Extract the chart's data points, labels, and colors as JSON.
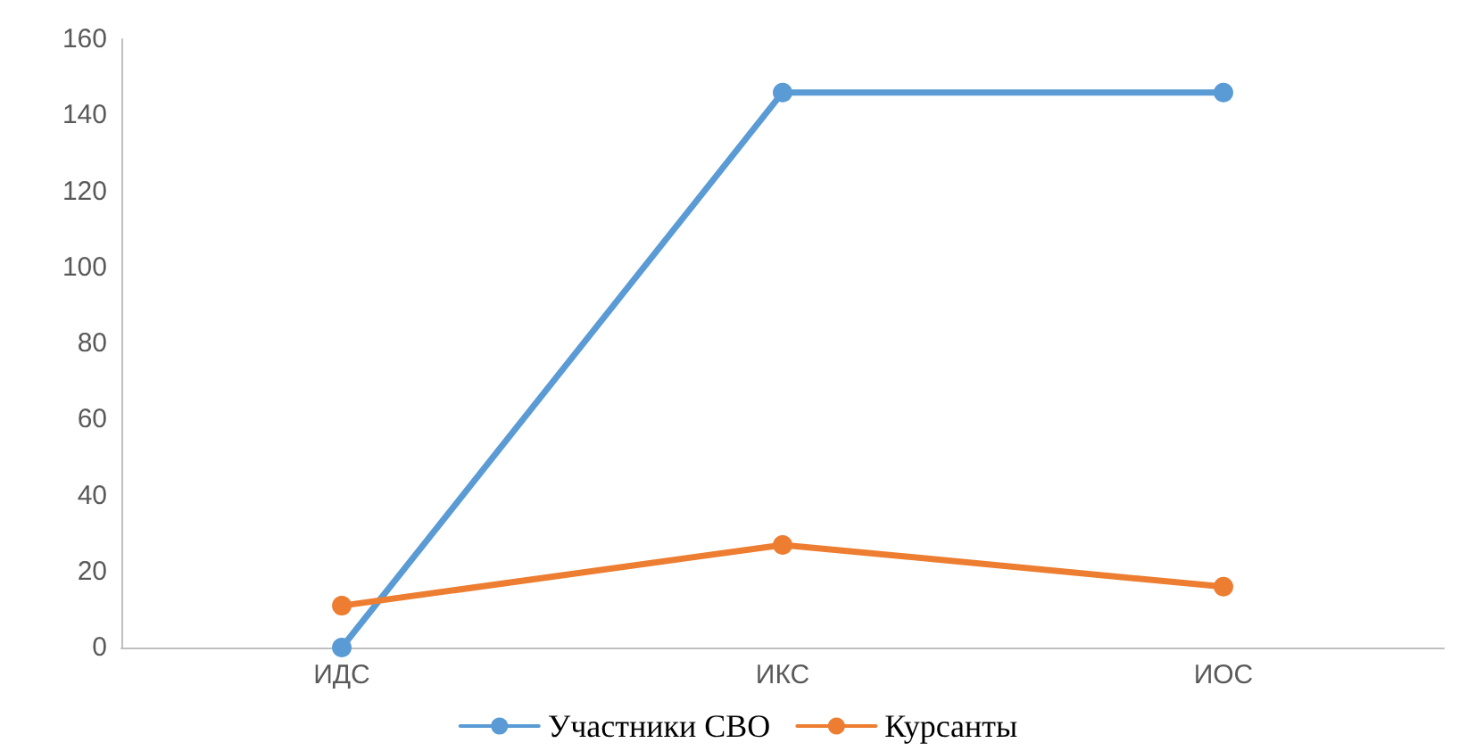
{
  "chart_data": {
    "type": "line",
    "categories": [
      "ИДС",
      "ИКС",
      "ИОС"
    ],
    "series": [
      {
        "name": "Участники СВО",
        "color": "#5b9bd5",
        "values": [
          0,
          146,
          146
        ]
      },
      {
        "name": "Курсанты",
        "color": "#ed7d31",
        "values": [
          11,
          27,
          16
        ]
      }
    ],
    "ylim": [
      0,
      160
    ],
    "yticks": [
      0,
      20,
      40,
      60,
      80,
      100,
      120,
      140,
      160
    ],
    "grid": false,
    "legend": "bottom",
    "marker": "circle",
    "line_style": "solid"
  }
}
